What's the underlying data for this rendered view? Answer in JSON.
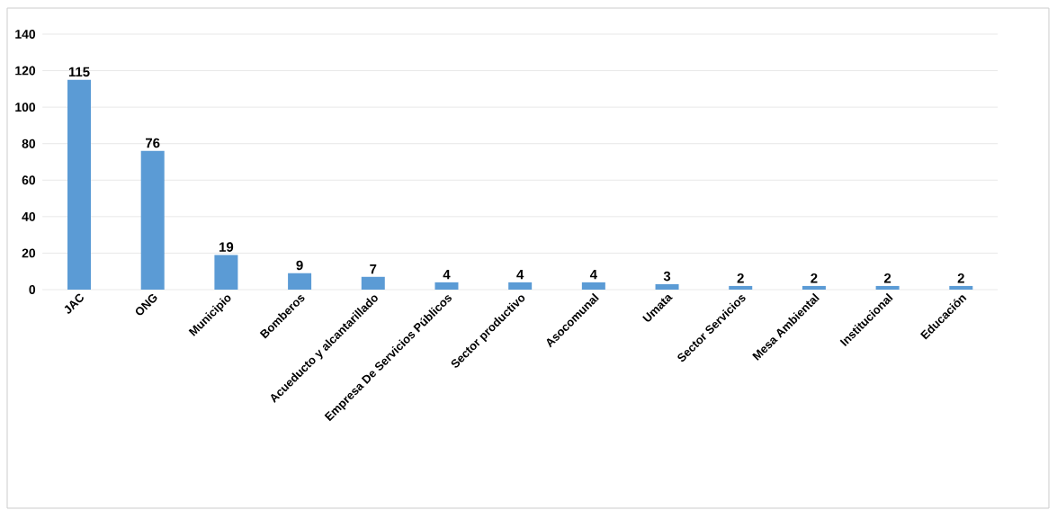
{
  "chart_data": {
    "type": "bar",
    "categories": [
      "JAC",
      "ONG",
      "Municipio",
      "Bomberos",
      "Acueducto y alcantarillado",
      "Empresa De Servicios Públicos",
      "Sector productivo",
      "Asocomunal",
      "Umata",
      "Sector Servicios",
      "Mesa Ambiental",
      "Institucional",
      "Educación"
    ],
    "values": [
      115,
      76,
      19,
      9,
      7,
      4,
      4,
      4,
      3,
      2,
      2,
      2,
      2
    ],
    "color": "#5b9bd5",
    "ylim": [
      0,
      140
    ],
    "yticks": [
      0,
      20,
      40,
      60,
      80,
      100,
      120,
      140
    ],
    "grid": "y",
    "data_labels": true
  }
}
